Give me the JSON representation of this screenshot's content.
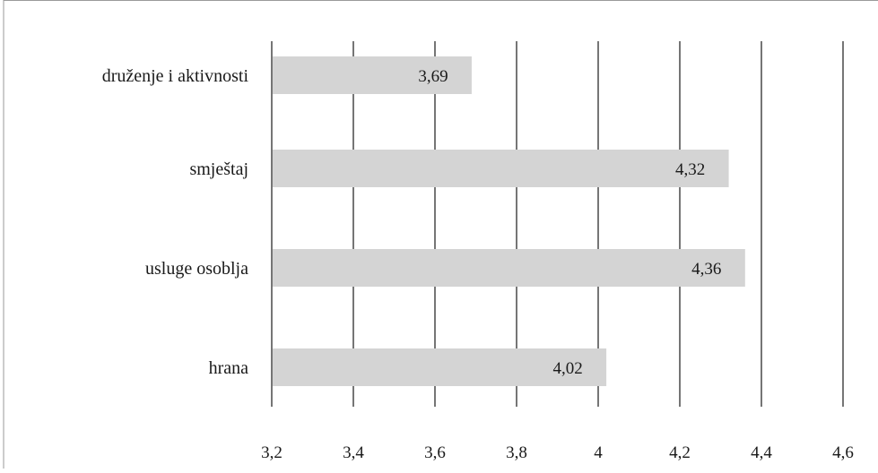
{
  "chart_data": {
    "type": "bar",
    "orientation": "horizontal",
    "title": "",
    "xlabel": "",
    "ylabel": "",
    "categories": [
      "druženje i aktivnosti",
      "smještaj",
      "usluge osoblja",
      "hrana"
    ],
    "values": [
      3.69,
      4.32,
      4.36,
      4.02
    ],
    "value_labels": [
      "3,69",
      "4,32",
      "4,36",
      "4,02"
    ],
    "xlim": [
      3.2,
      4.6
    ],
    "x_ticks": [
      3.2,
      3.4,
      3.6,
      3.8,
      4.0,
      4.2,
      4.4,
      4.6
    ],
    "x_tick_labels": [
      "3,2",
      "3,4",
      "3,6",
      "3,8",
      "4",
      "4,2",
      "4,4",
      "4,6"
    ],
    "grid": "vertical",
    "legend": "none",
    "colors": {
      "bar": "#d4d4d4",
      "grid": "#1a1a1a",
      "frame": "#9a9a9a",
      "text": "#1a1a1a"
    }
  }
}
